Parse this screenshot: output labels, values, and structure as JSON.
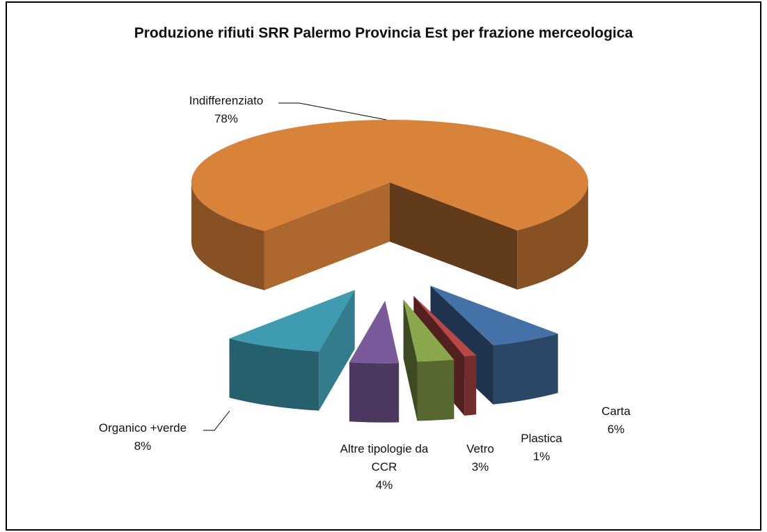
{
  "chart_data": {
    "type": "pie3d",
    "title": "Produzione rifiuti SRR Palermo Provincia Est per frazione merceologica",
    "categories": [
      "Indifferenziato",
      "Carta",
      "Plastica",
      "Vetro",
      "Altre tipologie da CCR",
      "Organico +verde"
    ],
    "values": [
      78,
      6,
      1,
      3,
      4,
      8
    ],
    "value_labels": [
      "78%",
      "6%",
      "1%",
      "3%",
      "4%",
      "8%"
    ],
    "colors": [
      "#d9823a",
      "#4472a8",
      "#b84848",
      "#8aa74c",
      "#7a5a9a",
      "#3f9bb0"
    ]
  }
}
